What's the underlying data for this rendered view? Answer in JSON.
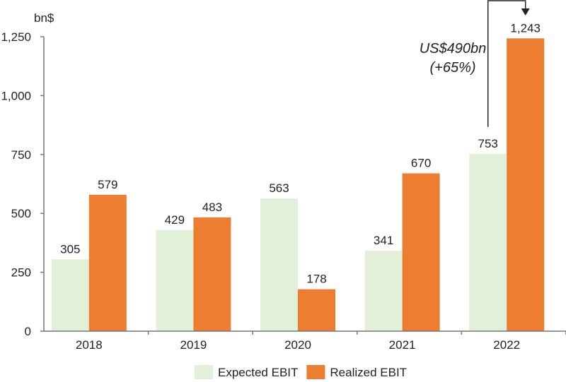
{
  "chart_data": {
    "type": "bar",
    "ylabel": "bn$",
    "categories": [
      "2018",
      "2019",
      "2020",
      "2021",
      "2022"
    ],
    "series": [
      {
        "name": "Expected EBIT",
        "values": [
          305,
          429,
          563,
          341,
          753
        ],
        "color": "#e2f0d9"
      },
      {
        "name": "Realized EBIT",
        "values": [
          579,
          483,
          178,
          670,
          1243
        ],
        "color": "#ed7d31"
      }
    ],
    "data_labels": [
      [
        "305",
        "429",
        "563",
        "341",
        "753"
      ],
      [
        "579",
        "483",
        "178",
        "670",
        "1,243"
      ]
    ],
    "ylim": [
      0,
      1250
    ],
    "yticks": [
      0,
      250,
      500,
      750,
      1000,
      1250
    ],
    "ytick_labels": [
      "0",
      "250",
      "500",
      "750",
      "1,000",
      "1,250"
    ],
    "grid": false,
    "legend_placement": "bottom",
    "annotation": {
      "line1": "US$490bn",
      "line2": "(+65%)",
      "from_category": "2022"
    }
  }
}
